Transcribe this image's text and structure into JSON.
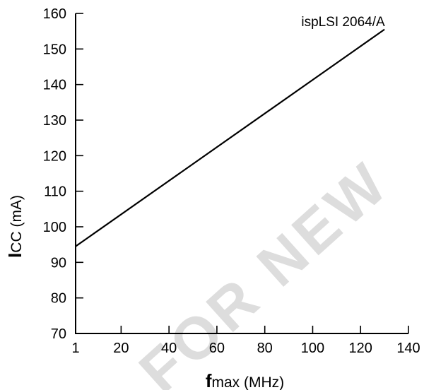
{
  "chart_data": {
    "type": "line",
    "title": "",
    "xlabel": {
      "bold": "f",
      "rest": "max (MHz)"
    },
    "ylabel": {
      "bold": "I",
      "rest": "CC (mA)"
    },
    "xlim": [
      1,
      140
    ],
    "ylim": [
      70,
      160
    ],
    "x_ticks": [
      1,
      20,
      40,
      60,
      80,
      100,
      120,
      140
    ],
    "y_ticks": [
      70,
      80,
      90,
      100,
      110,
      120,
      130,
      140,
      150,
      160
    ],
    "grid": false,
    "series": [
      {
        "name": "ispLSI 2064/A",
        "x": [
          1,
          130
        ],
        "y": [
          94.5,
          155.5
        ]
      }
    ],
    "annotations": [
      {
        "text": "ispLSI 2064/A",
        "x": 110,
        "y": 157
      }
    ],
    "watermark": "FOR NEW",
    "colors": {
      "line": "#000000",
      "axis": "#000000",
      "watermark": "#d0d0d0"
    }
  }
}
